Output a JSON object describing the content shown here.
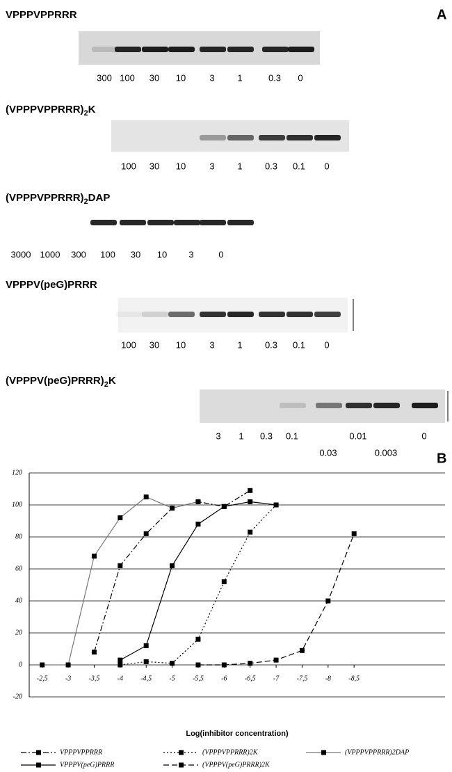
{
  "panel_a": {
    "label": "A",
    "blots": [
      {
        "title": "VPPPVPPRRR",
        "lanes": [
          "300",
          "100",
          "30",
          "10",
          "3",
          "1",
          "0.3",
          "0"
        ]
      },
      {
        "title": "(VPPPVPPRRR)",
        "title_sub": "2",
        "title_end": "K",
        "lanes": [
          "100",
          "30",
          "10",
          "3",
          "1",
          "0.3",
          "0.1",
          "0"
        ]
      },
      {
        "title": "(VPPPVPPRRR)",
        "title_sub": "2",
        "title_end": "DAP",
        "lanes": [
          "3000",
          "1000",
          "300",
          "100",
          "30",
          "10",
          "3",
          "0"
        ]
      },
      {
        "title": "VPPPV(peG)PRRR",
        "lanes": [
          "100",
          "30",
          "10",
          "3",
          "1",
          "0.3",
          "0.1",
          "0"
        ]
      },
      {
        "title": "(VPPPV(peG)PRRR)",
        "title_sub": "2",
        "title_end": "K",
        "lanes": [
          "3",
          "1",
          "0.3",
          "0.1",
          "0.03",
          "0.01",
          "0.003",
          "0"
        ]
      }
    ]
  },
  "chart_data": {
    "type": "line",
    "label": "B",
    "x_label": "Log(inhibitor concentration)",
    "xlim": [
      -2.25,
      -10.25
    ],
    "xticks": [
      {
        "value": -2.5,
        "label": "-2,5"
      },
      -3,
      {
        "value": -3.5,
        "label": "-3,5"
      },
      -4,
      {
        "value": -4.5,
        "label": "-4,5"
      },
      -5,
      {
        "value": -5.5,
        "label": "-5,5"
      },
      -6,
      {
        "value": -6.5,
        "label": "-6,5"
      },
      -7,
      {
        "value": -7.5,
        "label": "-7,5"
      },
      -8,
      {
        "value": -8.5,
        "label": "-8,5"
      }
    ],
    "ylim": [
      -20,
      120
    ],
    "yticks": [
      -20,
      0,
      20,
      40,
      60,
      80,
      100,
      120
    ],
    "grid": true,
    "series": [
      {
        "name": "VPPPVPPRRR",
        "color": "#000000",
        "dash": "8 3 2 3",
        "x": [
          -3.5,
          -4,
          -4.5,
          -5,
          -5.5,
          -6,
          -6.5
        ],
        "values": [
          8,
          62,
          82,
          98,
          102,
          99,
          109
        ]
      },
      {
        "name": "(VPPPVPPRRR)2K",
        "color": "#000000",
        "dash": "2 3",
        "x": [
          -4,
          -4.5,
          -5,
          -5.5,
          -6,
          -6.5,
          -7
        ],
        "values": [
          0,
          2,
          1,
          16,
          52,
          83,
          100
        ]
      },
      {
        "name": "(VPPPVPPRRR)2DAP",
        "color": "#777777",
        "dash": "none",
        "x": [
          -2.5,
          -3,
          -3.5,
          -4,
          -4.5,
          -5,
          -5.5
        ],
        "values": [
          0,
          0,
          68,
          92,
          105,
          98,
          102
        ]
      },
      {
        "name": "VPPPV(peG)PRRR",
        "color": "#000000",
        "dash": "none",
        "x": [
          -4,
          -4.5,
          -5,
          -5.5,
          -6,
          -6.5,
          -7
        ],
        "values": [
          3,
          12,
          62,
          88,
          99,
          102,
          100
        ]
      },
      {
        "name": "(VPPPV(peG)PRRR)2K",
        "color": "#000000",
        "dash": "8 4",
        "x": [
          -5.5,
          -6,
          -6.5,
          -7,
          -7.5,
          -8,
          -8.5
        ],
        "values": [
          0,
          0,
          1,
          3,
          9,
          40,
          82
        ]
      }
    ]
  }
}
